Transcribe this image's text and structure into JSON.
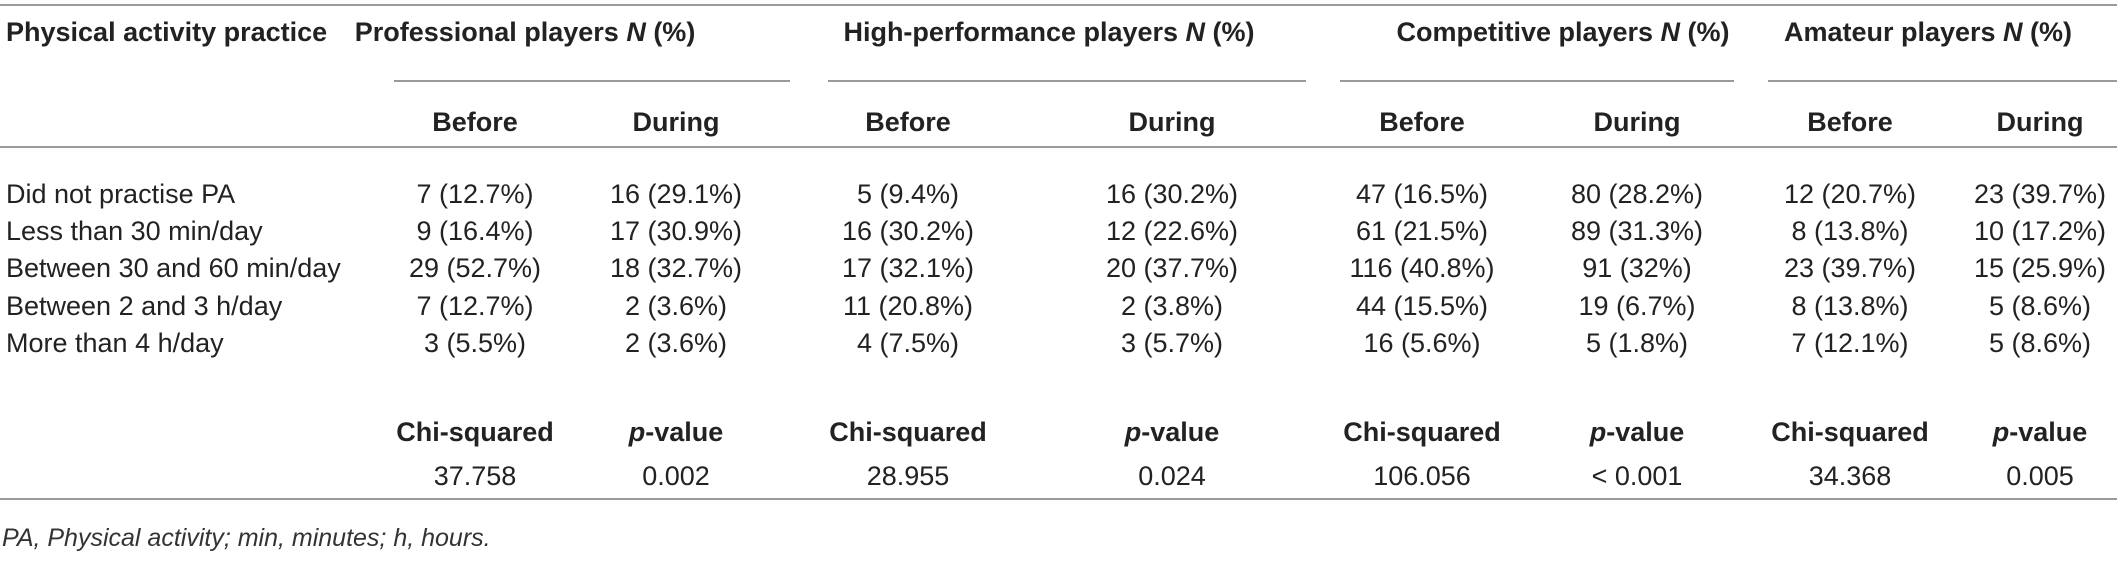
{
  "header": {
    "row_label": "Physical activity practice",
    "groups": [
      {
        "name": "Professional players ",
        "n_label": "N",
        "pct": " (%)"
      },
      {
        "name": "High-performance players ",
        "n_label": "N",
        "pct": " (%)"
      },
      {
        "name": "Competitive players ",
        "n_label": "N",
        "pct": " (%)"
      },
      {
        "name": "Amateur players ",
        "n_label": "N",
        "pct": " (%)"
      }
    ],
    "sub": [
      "Before",
      "During",
      "Before",
      "During",
      "Before",
      "During",
      "Before",
      "During"
    ]
  },
  "rows": [
    {
      "label": "Did not practise PA",
      "cells": [
        "7 (12.7%)",
        "16 (29.1%)",
        "5 (9.4%)",
        "16 (30.2%)",
        "47 (16.5%)",
        "80 (28.2%)",
        "12 (20.7%)",
        "23 (39.7%)"
      ]
    },
    {
      "label": "Less than 30 min/day",
      "cells": [
        "9 (16.4%)",
        "17 (30.9%)",
        "16 (30.2%)",
        "12 (22.6%)",
        "61 (21.5%)",
        "89 (31.3%)",
        "8 (13.8%)",
        "10 (17.2%)"
      ]
    },
    {
      "label": "Between 30 and 60 min/day",
      "cells": [
        "29 (52.7%)",
        "18 (32.7%)",
        "17 (32.1%)",
        "20 (37.7%)",
        "116 (40.8%)",
        "91 (32%)",
        "23 (39.7%)",
        "15 (25.9%)"
      ]
    },
    {
      "label": "Between 2 and 3 h/day",
      "cells": [
        "7 (12.7%)",
        "2 (3.6%)",
        "11 (20.8%)",
        "2 (3.8%)",
        "44 (15.5%)",
        "19 (6.7%)",
        "8 (13.8%)",
        "5 (8.6%)"
      ]
    },
    {
      "label": "More than 4 h/day",
      "cells": [
        "3 (5.5%)",
        "2 (3.6%)",
        "4 (7.5%)",
        "3 (5.7%)",
        "16 (5.6%)",
        "5 (1.8%)",
        "7 (12.1%)",
        "5 (8.6%)"
      ]
    }
  ],
  "stats_header": {
    "chi": "Chi-squared",
    "p_italic": "p",
    "p_rest": "-value"
  },
  "stats": [
    "37.758",
    "0.002",
    "28.955",
    "0.024",
    "106.056",
    "< 0.001",
    "34.368",
    "0.005"
  ],
  "footnote": "PA, Physical activity; min, minutes; h, hours."
}
